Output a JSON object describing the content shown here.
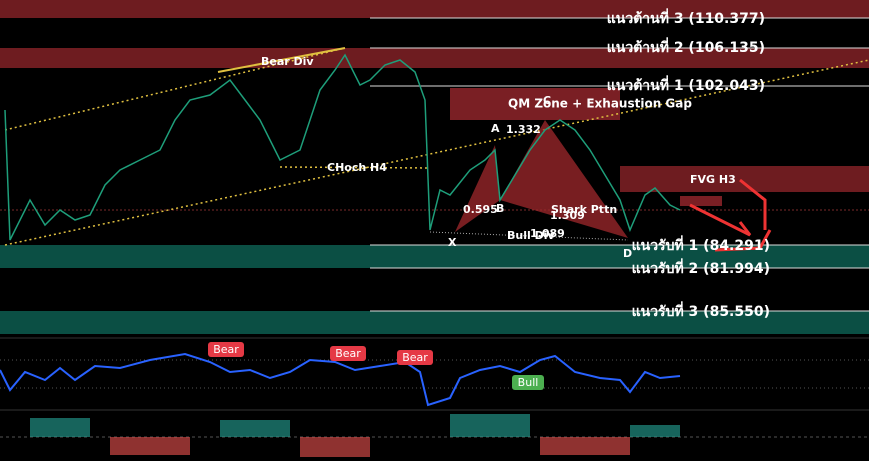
{
  "levels": {
    "resistance": [
      "แนวต้านที่ 3 (110.377)",
      "แนวต้านที่ 2 (106.135)",
      "แนวต้านที่ 1 (102.043)"
    ],
    "support": [
      "แนวรับที่ 1 (84.291)",
      "แนวรับที่ 2 (81.994)",
      "แนวรับที่ 3 (85.550)"
    ]
  },
  "zones": {
    "qm": "QM Zone + Exhaustion Gap",
    "fvg": "FVG H3"
  },
  "annotations": {
    "bear_div": "Bear Div",
    "choch": "CHoch H4",
    "bull_div": "Bull Div",
    "pattern": "Shark Pttn",
    "x": "X",
    "a": "A",
    "b": "B",
    "c": "C",
    "d": "D",
    "xa": "0.595",
    "ab": "1.332",
    "bc": "1.309",
    "xd": "1.089"
  },
  "indicator": {
    "bear": [
      "Bear",
      "Bear",
      "Bear"
    ],
    "bull": "Bull"
  }
}
